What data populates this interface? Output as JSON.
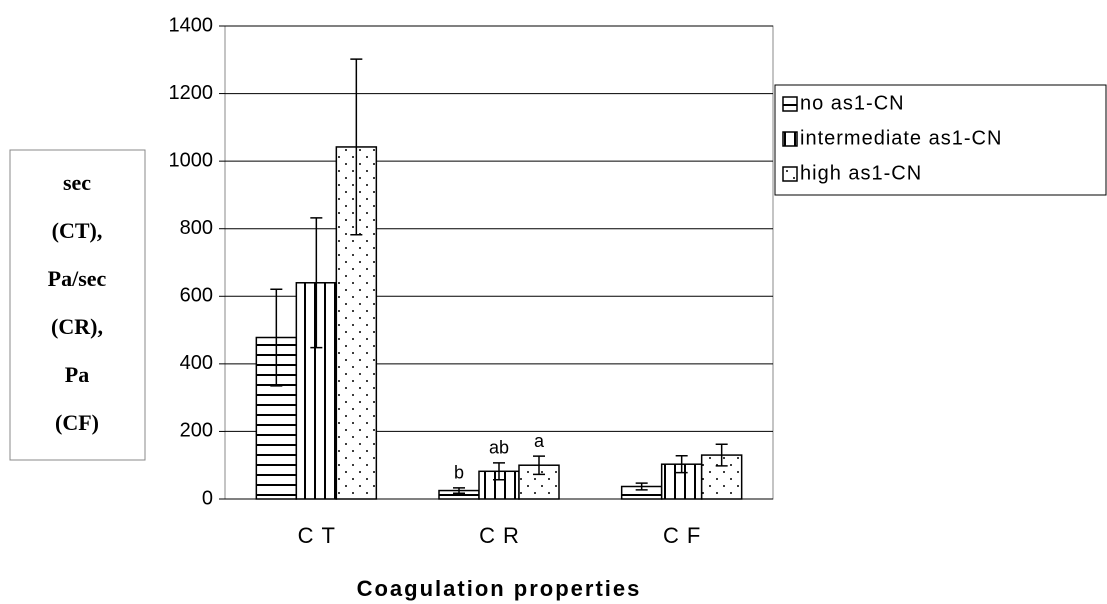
{
  "chart_data": {
    "type": "bar",
    "categories": [
      "CT",
      "CR",
      "CF"
    ],
    "x_label": "Coagulation properties",
    "y_label": [
      "sec",
      "(CT),",
      "Pa/sec",
      "(CR),",
      "Pa",
      "(CF)"
    ],
    "ylim": [
      0,
      1400
    ],
    "yticks": [
      0,
      200,
      400,
      600,
      800,
      1000,
      1200,
      1400
    ],
    "grid": true,
    "series": [
      {
        "name": "no as1-CN",
        "color": "#000000",
        "pattern": "horizontal",
        "values": [
          478,
          25,
          37
        ],
        "errors": [
          143,
          8,
          10
        ],
        "letters": [
          null,
          "b",
          null
        ]
      },
      {
        "name": "intermediate as1-CN",
        "color": "#000000",
        "pattern": "vertical",
        "values": [
          640,
          82,
          103
        ],
        "errors": [
          192,
          25,
          25
        ],
        "letters": [
          null,
          "ab",
          null
        ]
      },
      {
        "name": "high as1-CN",
        "color": "#000000",
        "pattern": "dots",
        "values": [
          1042,
          100,
          130
        ],
        "errors": [
          260,
          27,
          32
        ],
        "letters": [
          null,
          "a",
          null
        ]
      }
    ]
  }
}
